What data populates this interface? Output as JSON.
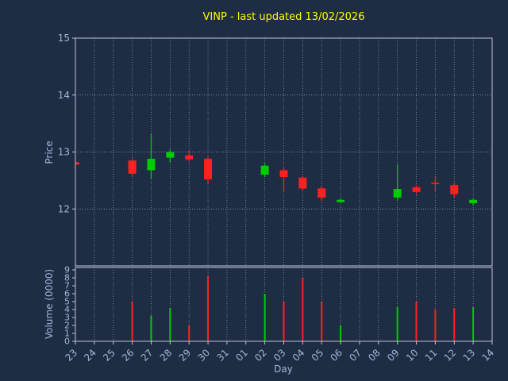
{
  "title": "VINP - last updated 13/02/2026",
  "xlabel": "Day",
  "x_categories": [
    "23",
    "24",
    "25",
    "26",
    "27",
    "28",
    "29",
    "30",
    "31",
    "01",
    "02",
    "03",
    "04",
    "05",
    "06",
    "07",
    "08",
    "09",
    "10",
    "11",
    "12",
    "13",
    "14"
  ],
  "colors": {
    "background": "#1f2d44",
    "title": "#ffff00",
    "axis_text": "#9fb6d8",
    "spine": "#b9c4d6",
    "grid": "#8fa0bd",
    "up": "#00cc00",
    "down": "#ff2020"
  },
  "chart_data": [
    {
      "type": "candlestick",
      "title": "VINP - last updated 13/02/2026",
      "ylabel": "Price",
      "ylim": [
        11,
        15
      ],
      "yticks": [
        12,
        13,
        14,
        15
      ],
      "grid": "dotted",
      "candles": [
        {
          "day": "23",
          "open": 12.82,
          "high": 12.84,
          "low": 12.76,
          "close": 12.78
        },
        {
          "day": "26",
          "open": 12.85,
          "high": 12.88,
          "low": 12.58,
          "close": 12.62
        },
        {
          "day": "27",
          "open": 12.68,
          "high": 13.32,
          "low": 12.52,
          "close": 12.88
        },
        {
          "day": "28",
          "open": 12.9,
          "high": 13.05,
          "low": 12.82,
          "close": 13.0
        },
        {
          "day": "29",
          "open": 12.94,
          "high": 13.02,
          "low": 12.84,
          "close": 12.87
        },
        {
          "day": "30",
          "open": 12.88,
          "high": 12.92,
          "low": 12.44,
          "close": 12.52
        },
        {
          "day": "02",
          "open": 12.6,
          "high": 12.8,
          "low": 12.56,
          "close": 12.76
        },
        {
          "day": "03",
          "open": 12.68,
          "high": 12.72,
          "low": 12.3,
          "close": 12.56
        },
        {
          "day": "04",
          "open": 12.55,
          "high": 12.58,
          "low": 12.32,
          "close": 12.36
        },
        {
          "day": "05",
          "open": 12.36,
          "high": 12.4,
          "low": 12.14,
          "close": 12.2
        },
        {
          "day": "06",
          "open": 12.12,
          "high": 12.18,
          "low": 12.1,
          "close": 12.16
        },
        {
          "day": "09",
          "open": 12.2,
          "high": 12.78,
          "low": 12.16,
          "close": 12.35
        },
        {
          "day": "10",
          "open": 12.38,
          "high": 12.42,
          "low": 12.26,
          "close": 12.3
        },
        {
          "day": "11",
          "open": 12.46,
          "high": 12.56,
          "low": 12.3,
          "close": 12.44
        },
        {
          "day": "12",
          "open": 12.42,
          "high": 12.46,
          "low": 12.2,
          "close": 12.26
        },
        {
          "day": "13",
          "open": 12.1,
          "high": 12.18,
          "low": 12.06,
          "close": 12.16
        }
      ]
    },
    {
      "type": "bar",
      "ylabel": "Volume (0000)",
      "ylim": [
        0,
        9.3
      ],
      "yticks": [
        0,
        1,
        2,
        3,
        4,
        5,
        6,
        7,
        8,
        9
      ],
      "bars": [
        {
          "day": "26",
          "value": 5.0
        },
        {
          "day": "27",
          "value": 3.2
        },
        {
          "day": "28",
          "value": 4.2
        },
        {
          "day": "29",
          "value": 2.0
        },
        {
          "day": "30",
          "value": 8.2
        },
        {
          "day": "02",
          "value": 6.0
        },
        {
          "day": "03",
          "value": 5.0
        },
        {
          "day": "04",
          "value": 8.0
        },
        {
          "day": "05",
          "value": 5.0
        },
        {
          "day": "06",
          "value": 2.0
        },
        {
          "day": "09",
          "value": 4.3
        },
        {
          "day": "10",
          "value": 5.0
        },
        {
          "day": "11",
          "value": 4.0
        },
        {
          "day": "12",
          "value": 4.2
        },
        {
          "day": "13",
          "value": 4.3
        }
      ]
    }
  ]
}
